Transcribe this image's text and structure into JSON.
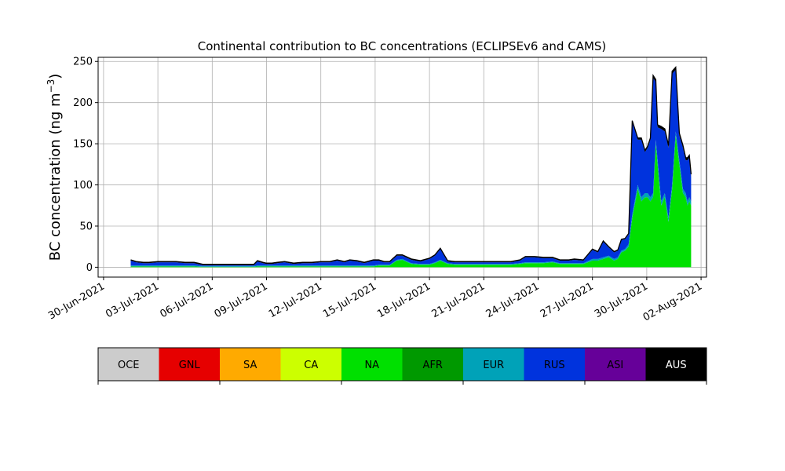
{
  "chart_data": {
    "type": "area",
    "title": "Continental contribution to BC concentrations (ECLIPSEv6 and CAMS)",
    "ylabel": "BC concentration (ng m",
    "ylabel_sup": "−3",
    "ylabel_close": ")",
    "xlabel": "",
    "xlim_days": [
      -0.3,
      33.3
    ],
    "ylim": [
      -12,
      255
    ],
    "yticks": [
      0,
      50,
      100,
      150,
      200,
      250
    ],
    "xticks": [
      {
        "day": 0,
        "label": "30-Jun-2021"
      },
      {
        "day": 3,
        "label": "03-Jul-2021"
      },
      {
        "day": 6,
        "label": "06-Jul-2021"
      },
      {
        "day": 9,
        "label": "09-Jul-2021"
      },
      {
        "day": 12,
        "label": "12-Jul-2021"
      },
      {
        "day": 15,
        "label": "15-Jul-2021"
      },
      {
        "day": 18,
        "label": "18-Jul-2021"
      },
      {
        "day": 21,
        "label": "21-Jul-2021"
      },
      {
        "day": 24,
        "label": "24-Jul-2021"
      },
      {
        "day": 27,
        "label": "27-Jul-2021"
      },
      {
        "day": 30,
        "label": "30-Jul-2021"
      },
      {
        "day": 33,
        "label": "02-Aug-2021"
      }
    ],
    "grid": true,
    "legend": {
      "placement": "bottom",
      "items": [
        {
          "label": "OCE",
          "color": "#cccccc"
        },
        {
          "label": "GNL",
          "color": "#e60000"
        },
        {
          "label": "SA",
          "color": "#ffaa00"
        },
        {
          "label": "CA",
          "color": "#ccff00"
        },
        {
          "label": "NA",
          "color": "#00e000"
        },
        {
          "label": "AFR",
          "color": "#009900"
        },
        {
          "label": "EUR",
          "color": "#00a2b8"
        },
        {
          "label": "RUS",
          "color": "#0033dd"
        },
        {
          "label": "ASI",
          "color": "#660099"
        },
        {
          "label": "AUS",
          "color": "#000000"
        }
      ]
    },
    "time_days": [
      1.5,
      1.8,
      2.2,
      2.5,
      3.0,
      3.5,
      4.0,
      4.5,
      5.0,
      5.5,
      6.0,
      6.5,
      7.0,
      7.5,
      8.0,
      8.3,
      8.5,
      8.8,
      9.0,
      9.3,
      9.6,
      10.0,
      10.5,
      11.0,
      11.3,
      11.5,
      12.0,
      12.5,
      12.9,
      13.3,
      13.6,
      14.0,
      14.4,
      14.9,
      15.2,
      15.5,
      15.8,
      16.2,
      16.5,
      17.0,
      17.5,
      18.0,
      18.3,
      18.6,
      19.0,
      19.4,
      19.8,
      20.2,
      20.6,
      21.0,
      21.5,
      22.0,
      22.5,
      23.0,
      23.3,
      23.8,
      24.3,
      24.8,
      25.2,
      25.7,
      26.0,
      26.5,
      27.0,
      27.3,
      27.6,
      27.9,
      28.2,
      28.4,
      28.6,
      28.8,
      29.0,
      29.2,
      29.5,
      29.7,
      29.9,
      30.05,
      30.2,
      30.35,
      30.5,
      30.6,
      30.8,
      31.0,
      31.2,
      31.4,
      31.6,
      31.8,
      32.0,
      32.15,
      32.25,
      32.35,
      32.45
    ],
    "series": [
      {
        "name": "NA",
        "color": "#00e000",
        "values": [
          1,
          1,
          1,
          1,
          1,
          1,
          1,
          1,
          1,
          0.5,
          0.5,
          0.5,
          0.5,
          0.5,
          0.5,
          0.5,
          1,
          1,
          1,
          1,
          1,
          1,
          1,
          1,
          1,
          1,
          1,
          1,
          1,
          1,
          1,
          1,
          1,
          1,
          2,
          2,
          2,
          8,
          9,
          4,
          3,
          3,
          5,
          8,
          4,
          3,
          3,
          3,
          3,
          3,
          3,
          3,
          3,
          4,
          5,
          5,
          5,
          6,
          4,
          4,
          4,
          4,
          8,
          8,
          10,
          12,
          8,
          10,
          18,
          20,
          25,
          60,
          95,
          80,
          85,
          85,
          80,
          85,
          150,
          125,
          75,
          85,
          55,
          95,
          160,
          125,
          90,
          85,
          75,
          80,
          75
        ]
      },
      {
        "name": "EUR",
        "color": "#00a2b8",
        "values": [
          1,
          1,
          1,
          1,
          1,
          1,
          1,
          1,
          1,
          1,
          1,
          1,
          1,
          1,
          1,
          1,
          1,
          1,
          1,
          1,
          1,
          1,
          1,
          1,
          1,
          1,
          1,
          1,
          1,
          1,
          1,
          1,
          1,
          1,
          1,
          1,
          1,
          1,
          1,
          1,
          1,
          1,
          1,
          1,
          1,
          1,
          1,
          1,
          1,
          1,
          1,
          1,
          1,
          1,
          1,
          1,
          1,
          1,
          1,
          1,
          1,
          1,
          2,
          2,
          2,
          2,
          2,
          2,
          2,
          2,
          3,
          4,
          5,
          5,
          5,
          5,
          5,
          5,
          5,
          5,
          5,
          5,
          5,
          5,
          5,
          5,
          5,
          5,
          5,
          5,
          5
        ]
      },
      {
        "name": "RUS",
        "color": "#0033dd",
        "values": [
          6,
          4,
          3,
          3,
          4,
          4,
          4,
          3,
          3,
          1,
          1,
          1,
          1,
          1,
          1,
          1,
          5,
          3,
          2,
          2,
          3,
          4,
          2,
          3,
          3,
          3,
          4,
          4,
          6,
          4,
          6,
          5,
          3,
          6,
          5,
          3,
          3,
          5,
          4,
          4,
          3,
          6,
          8,
          13,
          2,
          2,
          2,
          2,
          2,
          2,
          2,
          2,
          2,
          3,
          6,
          6,
          5,
          4,
          3,
          3,
          4,
          3,
          11,
          8,
          19,
          10,
          8,
          8,
          13,
          12,
          12,
          112,
          55,
          70,
          50,
          55,
          70,
          140,
          70,
          40,
          88,
          75,
          85,
          135,
          75,
          30,
          50,
          40,
          50,
          48,
          30
        ]
      },
      {
        "name": "AUS",
        "color": "#000000",
        "values": [
          1,
          1,
          1,
          1,
          1,
          1,
          1,
          1,
          1,
          1,
          1,
          1,
          1,
          1,
          1,
          1,
          1,
          1,
          1,
          1,
          1,
          1,
          1,
          1,
          1,
          1,
          1,
          1,
          1,
          1,
          1,
          1,
          1,
          1,
          1,
          1,
          1,
          1,
          1,
          1,
          1,
          1,
          1,
          1,
          1,
          1,
          1,
          1,
          1,
          1,
          1,
          1,
          1,
          1,
          1,
          1,
          1,
          1,
          1,
          1,
          1,
          1,
          1,
          1,
          1,
          1,
          1,
          1,
          1,
          1,
          1,
          2,
          2,
          2,
          2,
          2,
          2,
          3,
          3,
          3,
          3,
          3,
          3,
          3,
          3,
          3,
          3,
          3,
          3,
          3,
          3
        ]
      }
    ]
  }
}
